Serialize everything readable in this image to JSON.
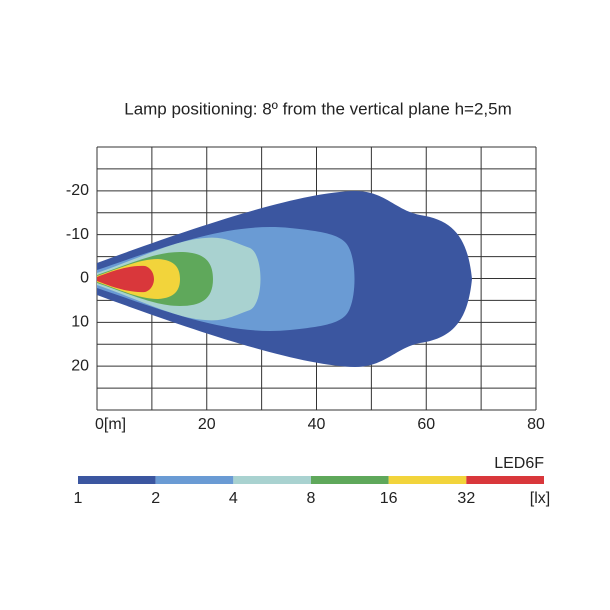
{
  "chart_data": {
    "type": "isolux",
    "title": "Lamp positioning: 8º from the vertical plane h=2,5m",
    "xlim": [
      0,
      80
    ],
    "xticks": [
      {
        "value": 0,
        "label": "0[m]"
      },
      20,
      40,
      60,
      80
    ],
    "xgrid": [
      0,
      10,
      20,
      30,
      40,
      50,
      60,
      70,
      80
    ],
    "ylim": [
      -30,
      30
    ],
    "yticks": [
      -20,
      -10,
      0,
      10,
      20
    ],
    "ygrid": [
      -30,
      -25,
      -20,
      -15,
      -10,
      -5,
      0,
      5,
      10,
      15,
      20,
      25,
      30
    ],
    "product": "LED6F",
    "unit": "[lx]",
    "levels": [
      1,
      2,
      4,
      8,
      16,
      32
    ],
    "colors": [
      "#3b56a0",
      "#6a9bd4",
      "#a9d2d0",
      "#5fa85b",
      "#f2d43b",
      "#d9373b"
    ]
  }
}
